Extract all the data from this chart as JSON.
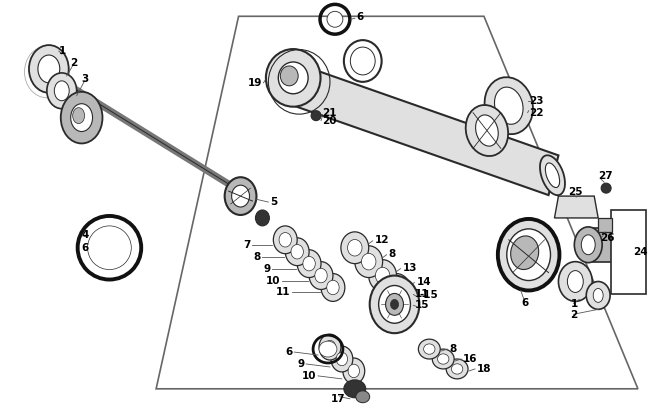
{
  "bg_color": "#ffffff",
  "lc": "#2a2a2a",
  "lc_thick": "#111111",
  "fill_light": "#e0e0e0",
  "fill_med": "#b8b8b8",
  "fill_dark": "#888888",
  "fill_vdark": "#333333",
  "fs": 7.5,
  "fw": "bold",
  "fig_w": 6.5,
  "fig_h": 4.2,
  "dpi": 100
}
